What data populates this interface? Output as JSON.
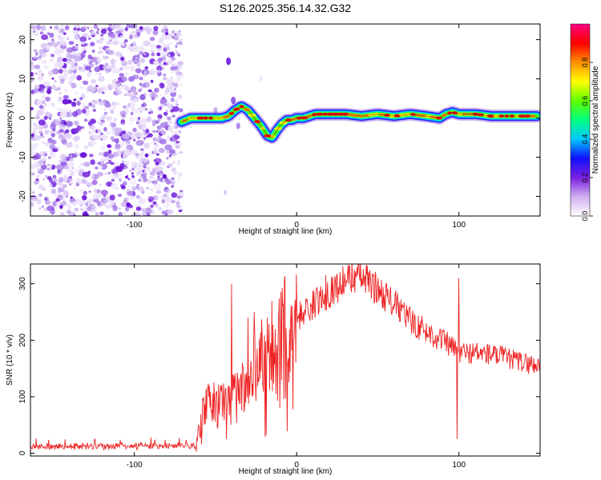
{
  "chart_data": [
    {
      "type": "heatmap",
      "title": "S126.2025.356.14.32.G32",
      "xlabel": "Height of straight line (km)",
      "ylabel": "Frequency (Hz)",
      "xlim": [
        -164,
        150
      ],
      "ylim": [
        -25,
        24
      ],
      "xticks": [
        -100,
        0,
        100
      ],
      "xtick_labels": [
        "-100",
        "0",
        "100"
      ],
      "yticks": [
        -20,
        -10,
        0,
        10,
        20
      ],
      "ytick_labels": [
        "-20",
        "-10",
        "0",
        "10",
        "20"
      ],
      "noise_region_km": [
        -164,
        -71
      ],
      "signal_track": {
        "x": [
          -71,
          -65,
          -58,
          -52,
          -46,
          -42,
          -38,
          -34,
          -30,
          -26,
          -22,
          -18,
          -15,
          -12,
          -9,
          -6,
          -3,
          0,
          4,
          8,
          12,
          20,
          30,
          40,
          50,
          60,
          70,
          80,
          88,
          92,
          96,
          100,
          110,
          120,
          130,
          140,
          148
        ],
        "y": [
          -1,
          0,
          0,
          0,
          0,
          0.5,
          2,
          3,
          2,
          0,
          -2,
          -4.5,
          -5,
          -3,
          -1.5,
          -0.5,
          -0.5,
          0,
          0,
          0.5,
          1,
          1,
          1,
          0.5,
          1,
          0.5,
          1,
          0.5,
          0,
          1,
          1.5,
          1,
          1,
          0.5,
          0.5,
          0.5,
          0.5
        ]
      },
      "colorbar": {
        "label": "Normalized spectral amplitude",
        "range": [
          0,
          1
        ],
        "ticks": [
          0.0,
          0.2,
          0.4,
          0.6,
          0.8
        ],
        "tick_labels": [
          "0.0",
          "0.2",
          "0.4",
          "0.6",
          "0.8"
        ],
        "colormap": [
          "#ffffff",
          "#d0b0f0",
          "#7a1fe0",
          "#1010ff",
          "#00c8ff",
          "#00ff80",
          "#60ff00",
          "#ffff00",
          "#ff9000",
          "#ff0000",
          "#ff0080"
        ]
      }
    },
    {
      "type": "line",
      "xlabel": "Height of straight line (km)",
      "ylabel": "SNR (10 * v/v)",
      "xlim": [
        -164,
        150
      ],
      "ylim": [
        -5,
        335
      ],
      "xticks": [
        -100,
        0,
        100
      ],
      "xtick_labels": [
        "-100",
        "0",
        "100"
      ],
      "yticks": [
        0,
        100,
        200,
        300
      ],
      "ytick_labels": [
        "0",
        "100",
        "200",
        "300"
      ],
      "series": [
        {
          "name": "SNR",
          "color": "#ee2222",
          "envelope": {
            "x": [
              -164,
              -62,
              -58,
              -55,
              -50,
              -45,
              -40,
              -35,
              -30,
              -25,
              -20,
              -15,
              -10,
              -5,
              0,
              10,
              20,
              30,
              35,
              40,
              50,
              60,
              70,
              80,
              90,
              100,
              110,
              120,
              130,
              140,
              150
            ],
            "y": [
              12,
              13,
              80,
              85,
              90,
              95,
              100,
              110,
              130,
              155,
              180,
              195,
              210,
              225,
              240,
              262,
              285,
              305,
              315,
              312,
              290,
              265,
              235,
              215,
              200,
              178,
              178,
              175,
              168,
              160,
              155
            ]
          },
          "spikes": [
            {
              "x": -40,
              "y": 300
            },
            {
              "x": -30,
              "y": 240
            },
            {
              "x": -26,
              "y": 250
            },
            {
              "x": -18,
              "y": 240
            },
            {
              "x": -11,
              "y": 245
            },
            {
              "x": 18,
              "y": 315
            },
            {
              "x": 99,
              "y": 25
            },
            {
              "x": 100,
              "y": 310
            }
          ]
        }
      ]
    }
  ]
}
